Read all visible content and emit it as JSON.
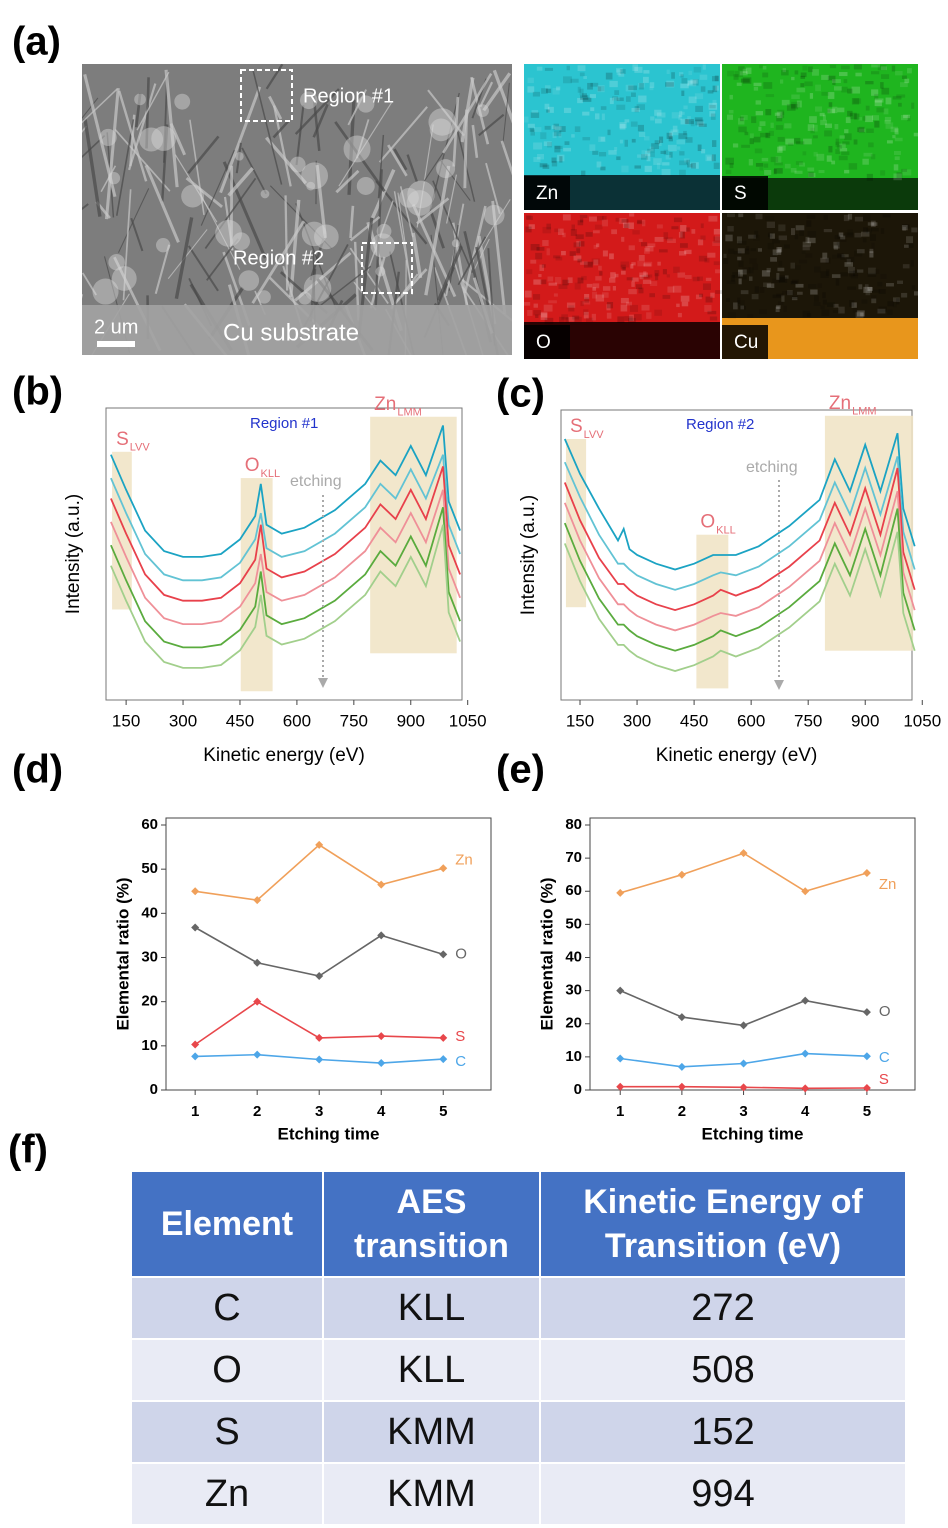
{
  "panel_labels": [
    "(a)",
    "(b)",
    "(c)",
    "(d)",
    "(e)",
    "(f)"
  ],
  "sem": {
    "region_labels": [
      "Region #1",
      "Region #2"
    ],
    "scale_bar": "2 um",
    "substrate": "Cu substrate",
    "maps": [
      "Zn",
      "S",
      "O",
      "Cu"
    ]
  },
  "chart_data": [
    {
      "type": "line",
      "title": "Region #1",
      "annotations": [
        "etching"
      ],
      "xlabel": "Kinetic energy (eV)",
      "ylabel": "Intensity (a.u.)",
      "xlim": [
        97,
        1035
      ],
      "xticks": [
        150,
        300,
        450,
        600,
        750,
        900,
        1050
      ],
      "ylim": [
        0,
        100
      ],
      "highlights": [
        {
          "label": "S",
          "sub": "LVV",
          "x": [
            113,
            165
          ],
          "y": [
            31,
            85
          ]
        },
        {
          "label": "O",
          "sub": "KLL",
          "x": [
            452,
            536
          ],
          "y": [
            3,
            76
          ]
        },
        {
          "label": "Zn",
          "sub": "LMM",
          "x": [
            793,
            1021
          ],
          "y": [
            16,
            97
          ]
        }
      ],
      "x": [
        110,
        150,
        200,
        250,
        300,
        350,
        400,
        450,
        490,
        505,
        520,
        560,
        620,
        700,
        780,
        820,
        860,
        900,
        940,
        985,
        1000,
        1030
      ],
      "series": [
        {
          "color": "#1ba3c3",
          "values": [
            84,
            72,
            58,
            51,
            49,
            49,
            50,
            55,
            63,
            74,
            60,
            57,
            59,
            65,
            74,
            82,
            77,
            87,
            77,
            94,
            68,
            58
          ]
        },
        {
          "color": "#62c3d4",
          "values": [
            76,
            64,
            50,
            43,
            41,
            41,
            42,
            47,
            55,
            64,
            52,
            49,
            51,
            57,
            66,
            74,
            69,
            79,
            69,
            84,
            60,
            50
          ]
        },
        {
          "color": "#e8414b",
          "values": [
            69,
            57,
            43,
            36,
            34,
            34,
            35,
            40,
            48,
            60,
            45,
            42,
            44,
            50,
            59,
            67,
            62,
            72,
            62,
            80,
            53,
            43
          ]
        },
        {
          "color": "#ef9098",
          "values": [
            61,
            49,
            35,
            28,
            26,
            26,
            27,
            32,
            40,
            50,
            37,
            34,
            36,
            42,
            51,
            59,
            54,
            64,
            54,
            72,
            45,
            35
          ]
        },
        {
          "color": "#5aab3e",
          "values": [
            53,
            41,
            27,
            20,
            18,
            18,
            19,
            24,
            32,
            44,
            29,
            26,
            28,
            34,
            43,
            51,
            46,
            56,
            46,
            66,
            37,
            27
          ]
        },
        {
          "color": "#a2cf8c",
          "values": [
            46,
            34,
            20,
            13,
            11,
            11,
            12,
            17,
            25,
            36,
            22,
            19,
            21,
            27,
            36,
            44,
            39,
            49,
            39,
            60,
            30,
            20
          ]
        }
      ]
    },
    {
      "type": "line",
      "title": "Region #2",
      "annotations": [
        "etching"
      ],
      "xlabel": "Kinetic energy (eV)",
      "ylabel": "Intensity (a.u.)",
      "xlim": [
        100,
        1023
      ],
      "xticks": [
        150,
        300,
        450,
        600,
        750,
        900,
        1050
      ],
      "ylim": [
        0,
        100
      ],
      "highlights": [
        {
          "label": "S",
          "sub": "LVV",
          "x": [
            113,
            166
          ],
          "y": [
            32,
            90
          ]
        },
        {
          "label": "O",
          "sub": "KLL",
          "x": [
            456,
            540
          ],
          "y": [
            4,
            57
          ]
        },
        {
          "label": "Zn",
          "sub": "LMM",
          "x": [
            794,
            1026
          ],
          "y": [
            17,
            98
          ]
        }
      ],
      "x": [
        110,
        150,
        200,
        250,
        265,
        280,
        300,
        350,
        400,
        450,
        500,
        520,
        560,
        620,
        700,
        780,
        820,
        860,
        900,
        940,
        985,
        1000,
        1030
      ],
      "series": [
        {
          "color": "#1ba3c3",
          "values": [
            90,
            78,
            66,
            55,
            59,
            52,
            50,
            47,
            45,
            47,
            50,
            50,
            50,
            53,
            60,
            69,
            83,
            72,
            88,
            72,
            92,
            66,
            53
          ]
        },
        {
          "color": "#62c3d4",
          "values": [
            82,
            70,
            57,
            47,
            47,
            45,
            43,
            40,
            38,
            40,
            43,
            44,
            43,
            46,
            53,
            62,
            75,
            64,
            80,
            64,
            84,
            58,
            45
          ]
        },
        {
          "color": "#e8414b",
          "values": [
            75,
            62,
            49,
            40,
            40,
            38,
            36,
            33,
            31,
            33,
            36,
            38,
            36,
            39,
            46,
            55,
            68,
            57,
            73,
            57,
            80,
            51,
            38
          ]
        },
        {
          "color": "#ef9098",
          "values": [
            68,
            55,
            42,
            33,
            33,
            31,
            29,
            26,
            24,
            26,
            29,
            30,
            29,
            32,
            39,
            48,
            61,
            50,
            66,
            50,
            72,
            44,
            31
          ]
        },
        {
          "color": "#5aab3e",
          "values": [
            61,
            48,
            35,
            26,
            26,
            24,
            22,
            19,
            17,
            19,
            22,
            24,
            22,
            25,
            32,
            41,
            54,
            43,
            59,
            43,
            66,
            37,
            24
          ]
        },
        {
          "color": "#a2cf8c",
          "values": [
            54,
            41,
            28,
            19,
            19,
            17,
            15,
            12,
            10,
            12,
            15,
            17,
            15,
            18,
            25,
            34,
            47,
            36,
            52,
            36,
            58,
            30,
            17
          ]
        }
      ]
    },
    {
      "type": "line",
      "markers": true,
      "xlabel": "Etching time",
      "ylabel": "Elemental ratio (%)",
      "xlim": [
        0.53,
        5.77
      ],
      "xticks": [
        1,
        2,
        3,
        4,
        5
      ],
      "ylim": [
        0,
        60
      ],
      "yticks": [
        0,
        10,
        20,
        30,
        40,
        50,
        60
      ],
      "x": [
        1,
        2,
        3,
        4,
        5
      ],
      "series": [
        {
          "name": "Zn",
          "color": "#f0a05a",
          "values": [
            45,
            43,
            55.5,
            46.5,
            50.2
          ]
        },
        {
          "name": "O",
          "color": "#666666",
          "values": [
            36.8,
            28.8,
            25.8,
            35,
            30.7
          ]
        },
        {
          "name": "S",
          "color": "#e8474b",
          "values": [
            10.3,
            20,
            11.8,
            12.2,
            11.8
          ]
        },
        {
          "name": "C",
          "color": "#4da6e8",
          "values": [
            7.6,
            8,
            6.9,
            6.1,
            7
          ]
        }
      ]
    },
    {
      "type": "line",
      "markers": true,
      "xlabel": "Etching time",
      "ylabel": "Elemental ratio (%)",
      "xlim": [
        0.51,
        5.78
      ],
      "xticks": [
        1,
        2,
        3,
        4,
        5
      ],
      "ylim": [
        0,
        80
      ],
      "yticks": [
        0,
        10,
        20,
        30,
        40,
        50,
        60,
        70,
        80
      ],
      "x": [
        1,
        2,
        3,
        4,
        5
      ],
      "series": [
        {
          "name": "Zn",
          "color": "#f0a05a",
          "values": [
            59.5,
            65,
            71.5,
            60,
            65.5
          ]
        },
        {
          "name": "O",
          "color": "#666666",
          "values": [
            30,
            22,
            19.5,
            27,
            23.5
          ]
        },
        {
          "name": "C",
          "color": "#4da6e8",
          "values": [
            9.5,
            7,
            8,
            11,
            10.2
          ]
        },
        {
          "name": "S",
          "color": "#e8474b",
          "values": [
            1,
            1,
            0.8,
            0.5,
            0.6
          ]
        }
      ]
    }
  ],
  "table": {
    "header": [
      "Element",
      "AES transition",
      "Kinetic Energy of Transition (eV)"
    ],
    "rows": [
      [
        "C",
        "KLL",
        272
      ],
      [
        "O",
        "KLL",
        508
      ],
      [
        "S",
        "KMM",
        152
      ],
      [
        "Zn",
        "KMM",
        994
      ]
    ]
  }
}
